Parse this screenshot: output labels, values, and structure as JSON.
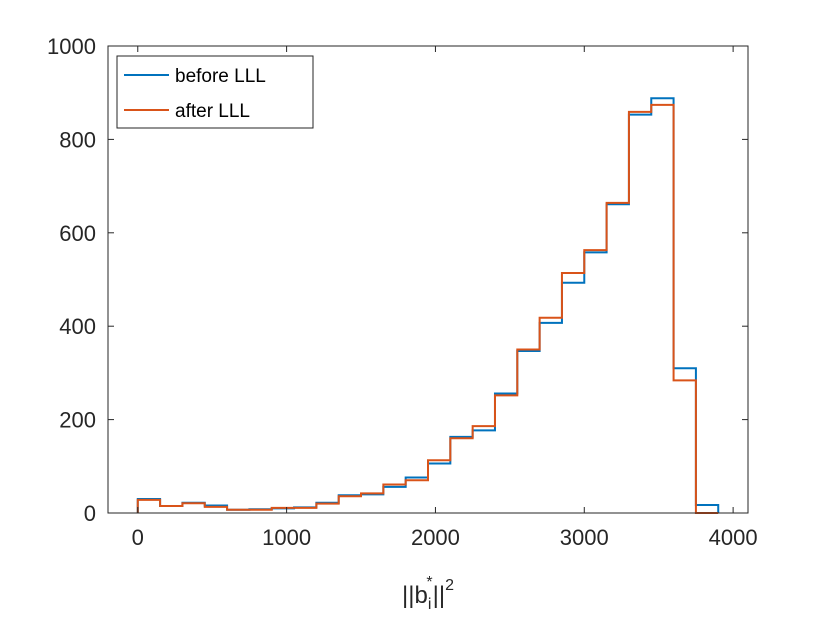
{
  "chart_data": {
    "type": "histogram",
    "xlabel": {
      "base": "||b",
      "sub": "i",
      "sup": "*",
      "after": "||",
      "power": "2"
    },
    "ylabel": "",
    "xlim": [
      -200,
      4100
    ],
    "ylim": [
      0,
      1000
    ],
    "xticks": [
      0,
      1000,
      2000,
      3000,
      4000
    ],
    "xtick_labels": [
      "0",
      "1000",
      "2000",
      "3000",
      "4000"
    ],
    "yticks": [
      0,
      200,
      400,
      600,
      800,
      1000
    ],
    "ytick_labels": [
      "0",
      "200",
      "400",
      "600",
      "800",
      "1000"
    ],
    "bin_edges": [
      0,
      150,
      300,
      450,
      600,
      750,
      900,
      1050,
      1200,
      1350,
      1500,
      1650,
      1800,
      1950,
      2100,
      2250,
      2400,
      2550,
      2700,
      2850,
      3000,
      3150,
      3300,
      3450,
      3600,
      3750,
      3900
    ],
    "legend_position": "top-left",
    "grid": false,
    "series": [
      {
        "name": "before LLL",
        "color": "#0072BD",
        "values": [
          30,
          15,
          22,
          16,
          7,
          8,
          10,
          12,
          22,
          38,
          40,
          56,
          76,
          106,
          163,
          177,
          256,
          347,
          407,
          493,
          558,
          661,
          853,
          888,
          310,
          17
        ]
      },
      {
        "name": "after LLL",
        "color": "#D95319",
        "values": [
          28,
          15,
          21,
          13,
          7,
          7,
          11,
          11,
          20,
          36,
          42,
          61,
          70,
          113,
          160,
          186,
          252,
          350,
          418,
          514,
          563,
          664,
          859,
          874,
          284,
          0
        ]
      }
    ]
  }
}
